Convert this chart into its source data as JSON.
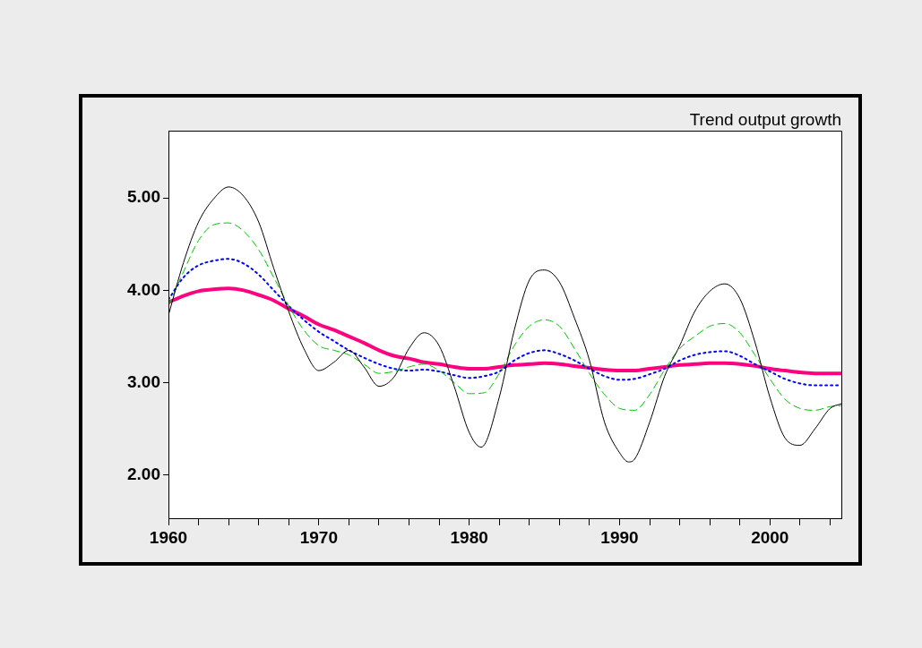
{
  "chart_data": {
    "type": "line",
    "title": "Trend output growth",
    "x": [
      1960,
      1961,
      1962,
      1963,
      1964,
      1965,
      1966,
      1967,
      1968,
      1969,
      1970,
      1971,
      1972,
      1973,
      1974,
      1975,
      1976,
      1977,
      1978,
      1979,
      1980,
      1981,
      1982,
      1983,
      1984,
      1985,
      1986,
      1987,
      1988,
      1989,
      1990,
      1991,
      1992,
      1993,
      1994,
      1995,
      1996,
      1997,
      1998,
      1999,
      2000,
      2001,
      2002,
      2003,
      2004,
      2004.75
    ],
    "series": [
      {
        "color": "#000000",
        "line_style": "solid",
        "x": [
          1960,
          1961,
          1962,
          1963,
          1964,
          1965,
          1966,
          1967,
          1968,
          1969,
          1970,
          1971,
          1972,
          1973,
          1974,
          1975,
          1976,
          1977,
          1978,
          1979,
          1980,
          1980.8,
          1982,
          1983,
          1984,
          1985,
          1986,
          1987,
          1988,
          1989,
          1990,
          1990.6,
          1991,
          1992,
          1993,
          1994,
          1995,
          1996,
          1997,
          1998,
          1999,
          2000,
          2001,
          2002,
          2003,
          2004,
          2004.75
        ],
        "values": [
          3.73,
          4.3,
          4.74,
          4.99,
          5.12,
          5.02,
          4.74,
          4.24,
          3.77,
          3.37,
          3.13,
          3.22,
          3.35,
          3.17,
          2.96,
          3.06,
          3.37,
          3.54,
          3.4,
          2.96,
          2.46,
          2.3,
          2.84,
          3.57,
          4.11,
          4.22,
          4.09,
          3.7,
          3.24,
          2.57,
          2.24,
          2.14,
          2.17,
          2.57,
          3.07,
          3.4,
          3.77,
          3.99,
          4.07,
          3.91,
          3.44,
          2.84,
          2.4,
          2.32,
          2.5,
          2.72,
          2.77
        ]
      },
      {
        "color": "#00c000",
        "line_style": "dashed",
        "values": [
          3.83,
          4.2,
          4.54,
          4.71,
          4.73,
          4.64,
          4.44,
          4.14,
          3.83,
          3.57,
          3.4,
          3.35,
          3.3,
          3.2,
          3.1,
          3.12,
          3.17,
          3.2,
          3.13,
          3.0,
          2.88,
          2.89,
          3.1,
          3.4,
          3.61,
          3.68,
          3.61,
          3.37,
          3.1,
          2.87,
          2.72,
          2.7,
          2.87,
          3.14,
          3.37,
          3.5,
          3.61,
          3.64,
          3.54,
          3.3,
          3.04,
          2.82,
          2.72,
          2.7,
          2.74,
          2.75
        ]
      },
      {
        "color": "#0000ff",
        "line_style": "dotted",
        "values": [
          3.9,
          4.14,
          4.27,
          4.32,
          4.34,
          4.29,
          4.17,
          4.0,
          3.83,
          3.68,
          3.55,
          3.45,
          3.35,
          3.27,
          3.2,
          3.15,
          3.13,
          3.14,
          3.12,
          3.08,
          3.05,
          3.07,
          3.12,
          3.24,
          3.32,
          3.35,
          3.31,
          3.24,
          3.15,
          3.07,
          3.03,
          3.04,
          3.09,
          3.15,
          3.24,
          3.3,
          3.33,
          3.34,
          3.29,
          3.2,
          3.12,
          3.04,
          2.99,
          2.97,
          2.97,
          2.97
        ]
      },
      {
        "color": "#ff0080",
        "line_style": "solid",
        "values": [
          3.87,
          3.94,
          3.99,
          4.01,
          4.02,
          4.0,
          3.95,
          3.89,
          3.8,
          3.72,
          3.63,
          3.57,
          3.5,
          3.43,
          3.35,
          3.29,
          3.26,
          3.22,
          3.2,
          3.17,
          3.15,
          3.15,
          3.17,
          3.19,
          3.2,
          3.21,
          3.2,
          3.18,
          3.16,
          3.14,
          3.13,
          3.13,
          3.15,
          3.17,
          3.19,
          3.2,
          3.21,
          3.21,
          3.2,
          3.18,
          3.15,
          3.13,
          3.11,
          3.1,
          3.1,
          3.1
        ]
      }
    ],
    "xlim": [
      1960,
      2004.75
    ],
    "xticks": [
      1960,
      {
        "value": 1962,
        "label": null
      },
      {
        "value": 1964,
        "label": null
      },
      {
        "value": 1966,
        "label": null
      },
      {
        "value": 1968,
        "label": null
      },
      1970,
      {
        "value": 1972,
        "label": null
      },
      {
        "value": 1974,
        "label": null
      },
      {
        "value": 1976,
        "label": null
      },
      {
        "value": 1978,
        "label": null
      },
      1980,
      {
        "value": 1982,
        "label": null
      },
      {
        "value": 1984,
        "label": null
      },
      {
        "value": 1986,
        "label": null
      },
      {
        "value": 1988,
        "label": null
      },
      1990,
      {
        "value": 1992,
        "label": null
      },
      {
        "value": 1994,
        "label": null
      },
      {
        "value": 1996,
        "label": null
      },
      {
        "value": 1998,
        "label": null
      },
      2000,
      {
        "value": 2002,
        "label": null
      },
      {
        "value": 2004,
        "label": null
      }
    ],
    "ylim": [
      1.53,
      5.73
    ],
    "yticks": [
      {
        "value": 2,
        "label": "2.00"
      },
      {
        "value": 3,
        "label": "3.00"
      },
      {
        "value": 4,
        "label": "4.00"
      },
      {
        "value": 5,
        "label": "5.00"
      }
    ],
    "grid": false,
    "legend": false,
    "marker": "none"
  }
}
